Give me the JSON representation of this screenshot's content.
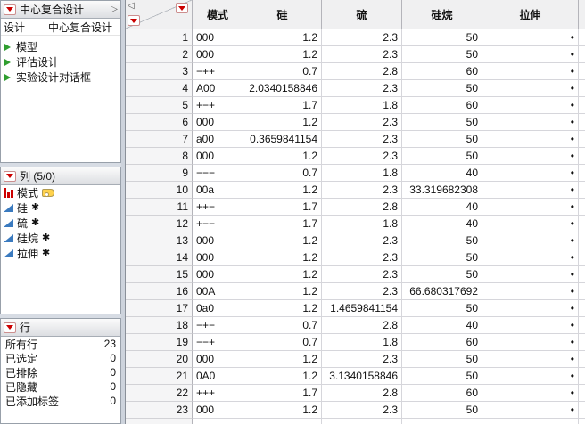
{
  "colors": {
    "red": "#cc0000",
    "green": "#2f9e2f",
    "blue": "#3a7abf",
    "yellow": "#ffd24d"
  },
  "icons": {
    "collapse_left": "◁",
    "collapse_right": "▷",
    "missing_value": "•",
    "design_role_marker": "✱"
  },
  "sidebar": {
    "design_panel": {
      "title": "中心复合设计",
      "design_label": "设计",
      "design_value": "中心复合设计",
      "items": [
        "模型",
        "评估设计",
        "实验设计对话框"
      ]
    },
    "columns_panel": {
      "title": "列 (5/0)",
      "items": [
        {
          "name": "模式",
          "marker": ""
        },
        {
          "name": "硅",
          "marker": "✱"
        },
        {
          "name": "硫",
          "marker": "✱"
        },
        {
          "name": "硅烷",
          "marker": "✱"
        },
        {
          "name": "拉伸",
          "marker": "✱"
        }
      ]
    },
    "rows_panel": {
      "title": "行",
      "stats": [
        {
          "label": "所有行",
          "value": "23"
        },
        {
          "label": "已选定",
          "value": "0"
        },
        {
          "label": "已排除",
          "value": "0"
        },
        {
          "label": "已隐藏",
          "value": "0"
        },
        {
          "label": "已添加标签",
          "value": "0"
        }
      ]
    }
  },
  "table": {
    "columns": [
      "模式",
      "硅",
      "硫",
      "硅烷",
      "拉伸"
    ],
    "rows": [
      [
        "000",
        "1.2",
        "2.3",
        "50",
        "•"
      ],
      [
        "000",
        "1.2",
        "2.3",
        "50",
        "•"
      ],
      [
        "−++",
        "0.7",
        "2.8",
        "60",
        "•"
      ],
      [
        "A00",
        "2.0340158846",
        "2.3",
        "50",
        "•"
      ],
      [
        "+−+",
        "1.7",
        "1.8",
        "60",
        "•"
      ],
      [
        "000",
        "1.2",
        "2.3",
        "50",
        "•"
      ],
      [
        "a00",
        "0.3659841154",
        "2.3",
        "50",
        "•"
      ],
      [
        "000",
        "1.2",
        "2.3",
        "50",
        "•"
      ],
      [
        "−−−",
        "0.7",
        "1.8",
        "40",
        "•"
      ],
      [
        "00a",
        "1.2",
        "2.3",
        "33.319682308",
        "•"
      ],
      [
        "++−",
        "1.7",
        "2.8",
        "40",
        "•"
      ],
      [
        "+−−",
        "1.7",
        "1.8",
        "40",
        "•"
      ],
      [
        "000",
        "1.2",
        "2.3",
        "50",
        "•"
      ],
      [
        "000",
        "1.2",
        "2.3",
        "50",
        "•"
      ],
      [
        "000",
        "1.2",
        "2.3",
        "50",
        "•"
      ],
      [
        "00A",
        "1.2",
        "2.3",
        "66.680317692",
        "•"
      ],
      [
        "0a0",
        "1.2",
        "1.4659841154",
        "50",
        "•"
      ],
      [
        "−+−",
        "0.7",
        "2.8",
        "40",
        "•"
      ],
      [
        "−−+",
        "0.7",
        "1.8",
        "60",
        "•"
      ],
      [
        "000",
        "1.2",
        "2.3",
        "50",
        "•"
      ],
      [
        "0A0",
        "1.2",
        "3.1340158846",
        "50",
        "•"
      ],
      [
        "+++",
        "1.7",
        "2.8",
        "60",
        "•"
      ],
      [
        "000",
        "1.2",
        "2.3",
        "50",
        "•"
      ]
    ]
  }
}
